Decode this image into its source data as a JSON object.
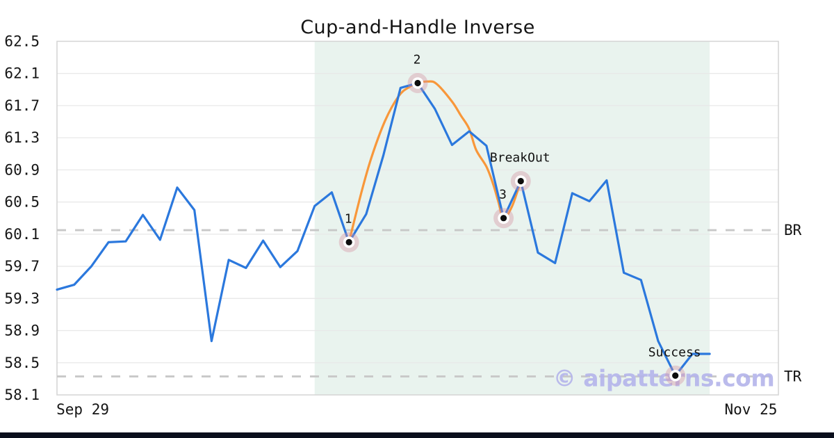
{
  "chart_data": {
    "type": "line",
    "title": "Cup-and-Handle Inverse",
    "watermark": "© aipatterns.com",
    "xlim": [
      0,
      42
    ],
    "ylim": [
      58.1,
      62.5
    ],
    "grid": "horizontal",
    "legend": "none",
    "y_ticks": [
      62.5,
      62.1,
      61.7,
      61.3,
      60.9,
      60.5,
      60.1,
      59.7,
      59.3,
      58.9,
      58.5,
      58.1
    ],
    "x_ticks": [
      {
        "label": "Sep 29",
        "pos": 1.5
      },
      {
        "label": "Nov 25",
        "pos": 40.4
      }
    ],
    "shaded_region": {
      "x0": 15,
      "x1": 38
    },
    "series": [
      {
        "name": "price",
        "values": [
          59.41,
          59.47,
          59.7,
          60.0,
          60.01,
          60.34,
          60.03,
          60.68,
          60.4,
          58.77,
          59.78,
          59.68,
          60.02,
          59.69,
          59.89,
          60.45,
          60.62,
          60.0,
          60.35,
          61.08,
          61.92,
          61.98,
          61.66,
          61.21,
          61.38,
          61.2,
          60.3,
          60.76,
          59.87,
          59.74,
          60.61,
          60.51,
          60.77,
          59.62,
          59.53,
          58.77,
          58.34,
          58.61,
          58.61
        ]
      }
    ],
    "pattern_curve": {
      "name": "cup-and-handle-arc",
      "points": [
        [
          17,
          60.0
        ],
        [
          17.7,
          60.6
        ],
        [
          18.3,
          61.05
        ],
        [
          19.1,
          61.51
        ],
        [
          19.9,
          61.82
        ],
        [
          20.5,
          61.93
        ],
        [
          21,
          61.98
        ],
        [
          21.6,
          62.0
        ],
        [
          22.1,
          61.97
        ],
        [
          23,
          61.75
        ],
        [
          23.5,
          61.58
        ],
        [
          24,
          61.41
        ],
        [
          24.4,
          61.15
        ],
        [
          25,
          60.94
        ],
        [
          25.4,
          60.72
        ],
        [
          25.7,
          60.5
        ],
        [
          26,
          60.3
        ],
        [
          26.5,
          60.45
        ],
        [
          27,
          60.76
        ]
      ]
    },
    "markers": [
      {
        "label": "1",
        "x": 17,
        "y": 60.0
      },
      {
        "label": "2",
        "x": 21,
        "y": 61.98
      },
      {
        "label": "3",
        "x": 26,
        "y": 60.3
      },
      {
        "label": "BreakOut",
        "x": 27,
        "y": 60.76
      },
      {
        "label": "Success",
        "x": 36,
        "y": 58.34
      }
    ],
    "hlines": [
      {
        "label": "BR",
        "y": 60.15
      },
      {
        "label": "TR",
        "y": 58.33
      }
    ],
    "colors": {
      "price_line": "#2b78dd",
      "pattern_line": "#f8973a",
      "shade": "#e9f3ee",
      "marker_halo": "rgba(214,145,160,0.38)",
      "marker_dot": "#0d0d0d",
      "dashed_line": "#c8c8c8",
      "grid_line": "#e8e8e8",
      "plot_border": "#d4d4d4",
      "watermark": "#b4b4eb",
      "footer_bar": "#0a0e1c",
      "text": "#141414"
    }
  }
}
